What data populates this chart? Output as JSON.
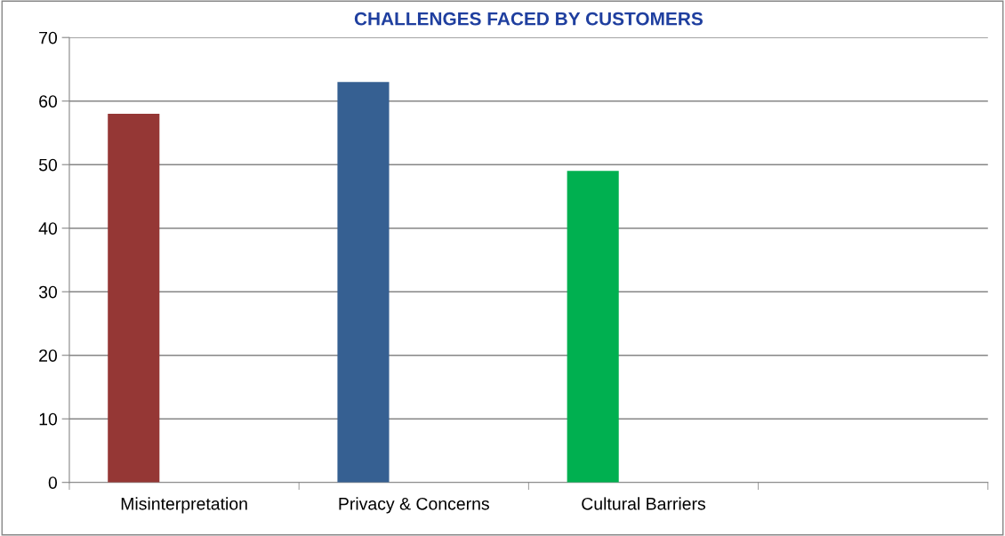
{
  "chart_data": {
    "type": "bar",
    "title": "CHALLENGES FACED BY CUSTOMERS",
    "categories": [
      "Misinterpretation",
      "Privacy & Concerns",
      "Cultural Barriers",
      null
    ],
    "values": [
      58,
      63,
      49,
      null
    ],
    "colors": [
      "#953735",
      "#366092",
      "#00b050",
      "#808080"
    ],
    "ylim": [
      0,
      70
    ],
    "yticks": [
      0,
      10,
      20,
      30,
      40,
      50,
      60,
      70
    ],
    "grid": "y",
    "legend": false
  }
}
